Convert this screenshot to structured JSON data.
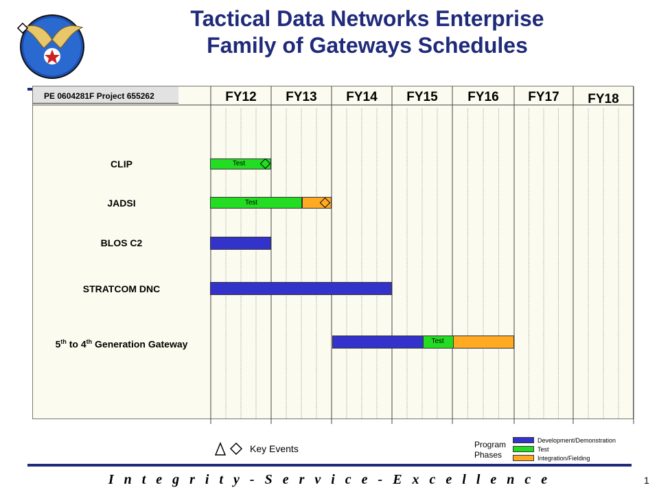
{
  "title": {
    "line1": "Tactical Data Networks Enterprise",
    "line2": "Family of Gateways Schedules"
  },
  "header": {
    "program_element": "PE 0604281F  Project 655262"
  },
  "fiscal_years": [
    "FY12",
    "FY13",
    "FY14",
    "FY15",
    "FY16",
    "FY17",
    "FY18"
  ],
  "programs": [
    {
      "label": "CLIP",
      "bars": [
        {
          "phase": "test",
          "start": "FY12 Q1",
          "end": "FY12 Q4",
          "label": "Test"
        }
      ],
      "events": [
        {
          "type": "diamond",
          "at": "FY12 end"
        }
      ]
    },
    {
      "label": "JADSI",
      "bars": [
        {
          "phase": "test",
          "start": "FY12 Q1",
          "end": "FY13 Q2",
          "label": "Test"
        },
        {
          "phase": "integration",
          "start": "FY13 Q3",
          "end": "FY13 Q4",
          "label": ""
        }
      ],
      "events": [
        {
          "type": "diamond",
          "at": "FY13 end"
        }
      ]
    },
    {
      "label": "BLOS C2",
      "bars": [
        {
          "phase": "development",
          "start": "FY12 Q1",
          "end": "FY12 Q4",
          "label": ""
        }
      ],
      "events": []
    },
    {
      "label": "STRATCOM DNC",
      "bars": [
        {
          "phase": "development",
          "start": "FY12 Q1",
          "end": "FY14 Q4",
          "label": ""
        }
      ],
      "events": []
    },
    {
      "label_parts": {
        "a": "5",
        "a_sup": "th",
        "b": " to 4",
        "b_sup": "th",
        "c": " Generation Gateway"
      },
      "bars": [
        {
          "phase": "development",
          "start": "FY14 Q1",
          "end": "FY15 Q2",
          "label": ""
        },
        {
          "phase": "test",
          "start": "FY15 Q3",
          "end": "FY15 Q4",
          "label": "Test"
        },
        {
          "phase": "integration",
          "start": "FY16 Q1",
          "end": "FY16 Q4",
          "label": ""
        }
      ],
      "events": []
    }
  ],
  "legend": {
    "key_events_label": "Key Events",
    "program_phases_line1": "Program",
    "program_phases_line2": "Phases",
    "phases": [
      {
        "name": "Development/Demonstration",
        "color": "#3333cc"
      },
      {
        "name": "Test",
        "color": "#22dd22"
      },
      {
        "name": "Integration/Fielding",
        "color": "#ffaa22"
      }
    ]
  },
  "colors": {
    "title": "#1f2a7a",
    "development": "#3333cc",
    "test": "#22dd22",
    "integration": "#ffaa22"
  },
  "footer": {
    "motto": "I n t e g r i t y  -  S e r v i c e  -  E x c e l l e n c e",
    "page_number": "1"
  }
}
